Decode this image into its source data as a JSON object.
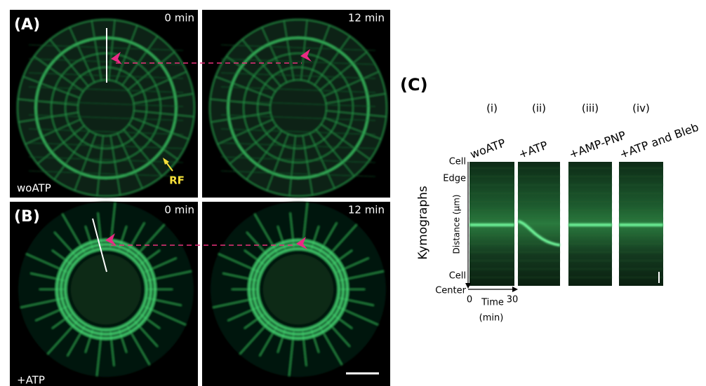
{
  "panels": [
    {
      "label": "(A)",
      "images": [
        {
          "time": "0 min"
        },
        {
          "time": "12 min"
        }
      ],
      "condition": "woATP",
      "annotation": "RF"
    },
    {
      "label": "(B)",
      "images": [
        {
          "time": "0 min"
        },
        {
          "time": "12 min"
        }
      ],
      "condition": "+ATP"
    }
  ],
  "kymographs": {
    "label": "(C)",
    "title": "Kymographs",
    "y_top": [
      "Cell",
      "Edge"
    ],
    "y_bottom": [
      "Cell",
      "Center"
    ],
    "y_label": "Distance (μm)",
    "x_start": 0,
    "x_end": 30,
    "x_label": "Time",
    "x_unit": "(min)",
    "columns": [
      {
        "index": "(i)",
        "condition": "woATP"
      },
      {
        "index": "(ii)",
        "condition": "+ATP"
      },
      {
        "index": "(iii)",
        "condition": "+AMP-PNP"
      },
      {
        "index": "(iv)",
        "condition": "+ATP and Bleb"
      }
    ]
  }
}
